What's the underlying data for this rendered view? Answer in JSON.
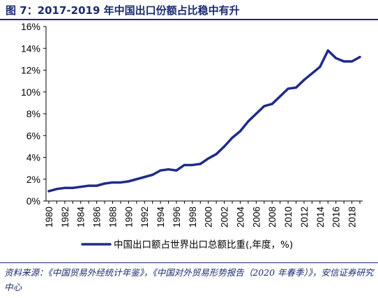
{
  "header": {
    "title": "图 7：2017-2019 年中国出口份额占比稳中有升"
  },
  "footer": {
    "source": "资料来源：《中国贸易外经统计年鉴》，《中国对外贸易形势报告（2020 年春季）》，安信证券研究中心"
  },
  "chart_data": {
    "type": "line",
    "title": "",
    "xlabel": "",
    "ylabel": "",
    "x": [
      1980,
      1981,
      1982,
      1983,
      1984,
      1985,
      1986,
      1987,
      1988,
      1989,
      1990,
      1991,
      1992,
      1993,
      1994,
      1995,
      1996,
      1997,
      1998,
      1999,
      2000,
      2001,
      2002,
      2003,
      2004,
      2005,
      2006,
      2007,
      2008,
      2009,
      2010,
      2011,
      2012,
      2013,
      2014,
      2015,
      2016,
      2017,
      2018,
      2019
    ],
    "xticks": [
      "1980",
      "1982",
      "1984",
      "1986",
      "1988",
      "1990",
      "1992",
      "1994",
      "1996",
      "1998",
      "2000",
      "2002",
      "2004",
      "2006",
      "2008",
      "2010",
      "2012",
      "2014",
      "2016",
      "2018"
    ],
    "yticks": [
      "0%",
      "2%",
      "4%",
      "6%",
      "8%",
      "10%",
      "12%",
      "14%",
      "16%"
    ],
    "ylim": [
      0,
      16
    ],
    "grid": false,
    "legend_position": "bottom",
    "series": [
      {
        "name": "中国出口额占世界出口总额比重(,年度，%)",
        "color": "#1f2a8c",
        "values": [
          0.9,
          1.1,
          1.2,
          1.2,
          1.3,
          1.4,
          1.4,
          1.6,
          1.7,
          1.7,
          1.8,
          2.0,
          2.2,
          2.4,
          2.8,
          2.9,
          2.8,
          3.3,
          3.3,
          3.4,
          3.9,
          4.3,
          5.0,
          5.8,
          6.4,
          7.3,
          8.0,
          8.7,
          8.9,
          9.6,
          10.3,
          10.4,
          11.1,
          11.7,
          12.3,
          13.8,
          13.1,
          12.8,
          12.8,
          13.2
        ]
      }
    ]
  }
}
